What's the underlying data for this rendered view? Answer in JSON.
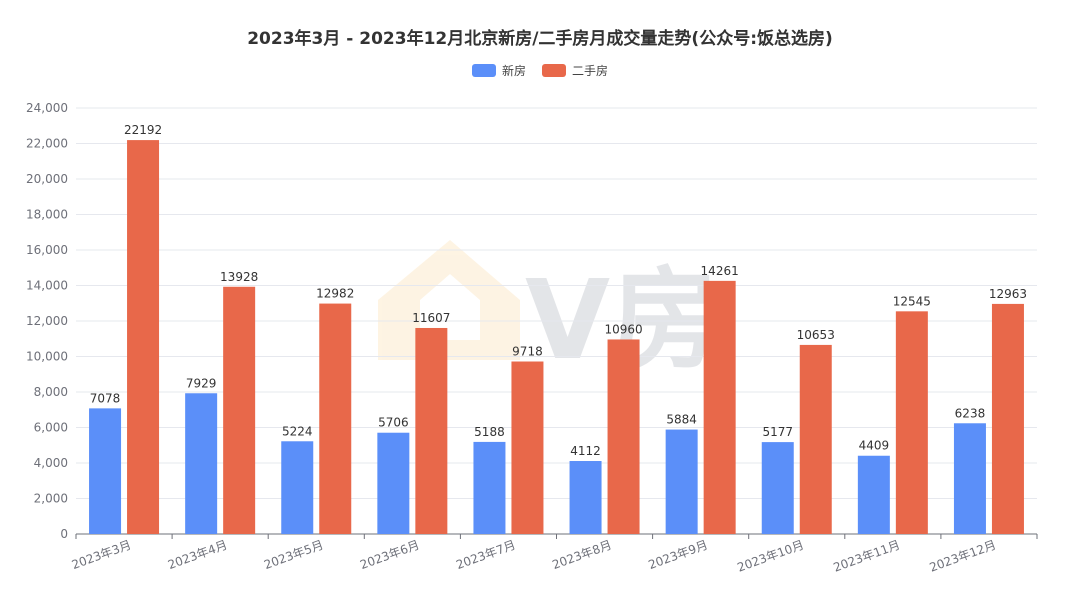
{
  "title": "2023年3月 - 2023年12月北京新房/二手房月成交量走势(公众号:饭总选房)",
  "watermark_text": "V房",
  "chart_data": {
    "type": "bar",
    "title": "2023年3月 - 2023年12月北京新房/二手房月成交量走势(公众号:饭总选房)",
    "categories": [
      "2023年3月",
      "2023年4月",
      "2023年5月",
      "2023年6月",
      "2023年7月",
      "2023年8月",
      "2023年9月",
      "2023年10月",
      "2023年11月",
      "2023年12月"
    ],
    "series": [
      {
        "name": "新房",
        "color": "#5b8ff9",
        "values": [
          7078,
          7929,
          5224,
          5706,
          5188,
          4112,
          5884,
          5177,
          4409,
          6238
        ]
      },
      {
        "name": "二手房",
        "color": "#e8684a",
        "values": [
          22192,
          13928,
          12982,
          11607,
          9718,
          10960,
          14261,
          10653,
          12545,
          12963
        ]
      }
    ],
    "ylim": [
      0,
      24000
    ],
    "yticks": [
      0,
      2000,
      4000,
      6000,
      8000,
      10000,
      12000,
      14000,
      16000,
      18000,
      20000,
      22000,
      24000
    ],
    "xlabel": "",
    "ylabel": "",
    "grid": true,
    "legend_position": "top-center"
  }
}
